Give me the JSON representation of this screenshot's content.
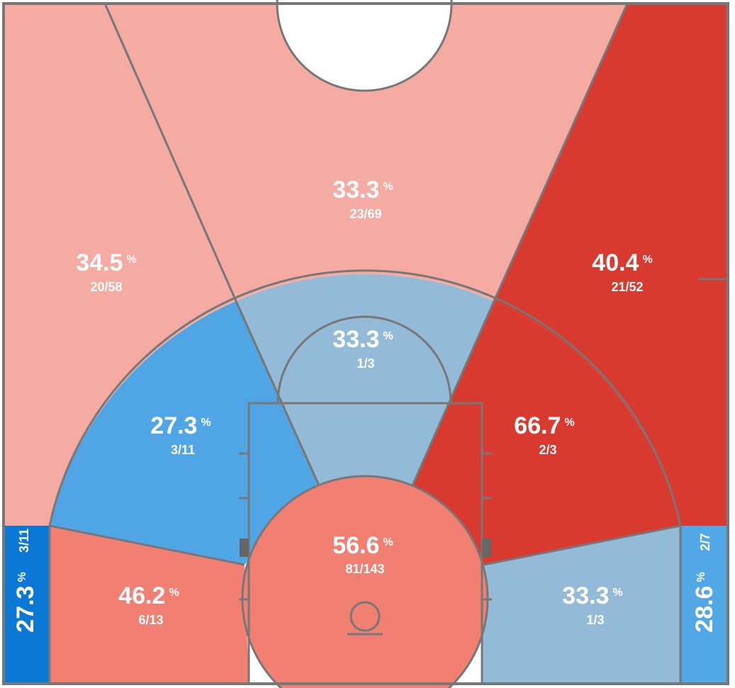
{
  "percent_sign": "%",
  "zones": [
    {
      "pct": 33.3,
      "shots": "23/69",
      "color": "#f5aba1"
    },
    {
      "pct": 34.5,
      "shots": "20/58",
      "color": "#f5aba1"
    },
    {
      "pct": 40.4,
      "shots": "21/52",
      "color": "#d93a2f"
    },
    {
      "pct": 33.3,
      "shots": "1/3",
      "color": "#93bbd8"
    },
    {
      "pct": 27.3,
      "shots": "3/11",
      "color": "#50a6e5"
    },
    {
      "pct": 66.7,
      "shots": "2/3",
      "color": "#d93a2f"
    },
    {
      "pct": 56.6,
      "shots": "81/143",
      "color": "#f28072"
    },
    {
      "pct": 46.2,
      "shots": "6/13",
      "color": "#f28072"
    },
    {
      "pct": 33.3,
      "shots": "1/3",
      "color": "#93bbd8"
    },
    {
      "pct": 27.3,
      "shots": "3/11",
      "color": "#0a78d4"
    },
    {
      "pct": 28.6,
      "shots": "2/7",
      "color": "#52a7e6"
    }
  ]
}
